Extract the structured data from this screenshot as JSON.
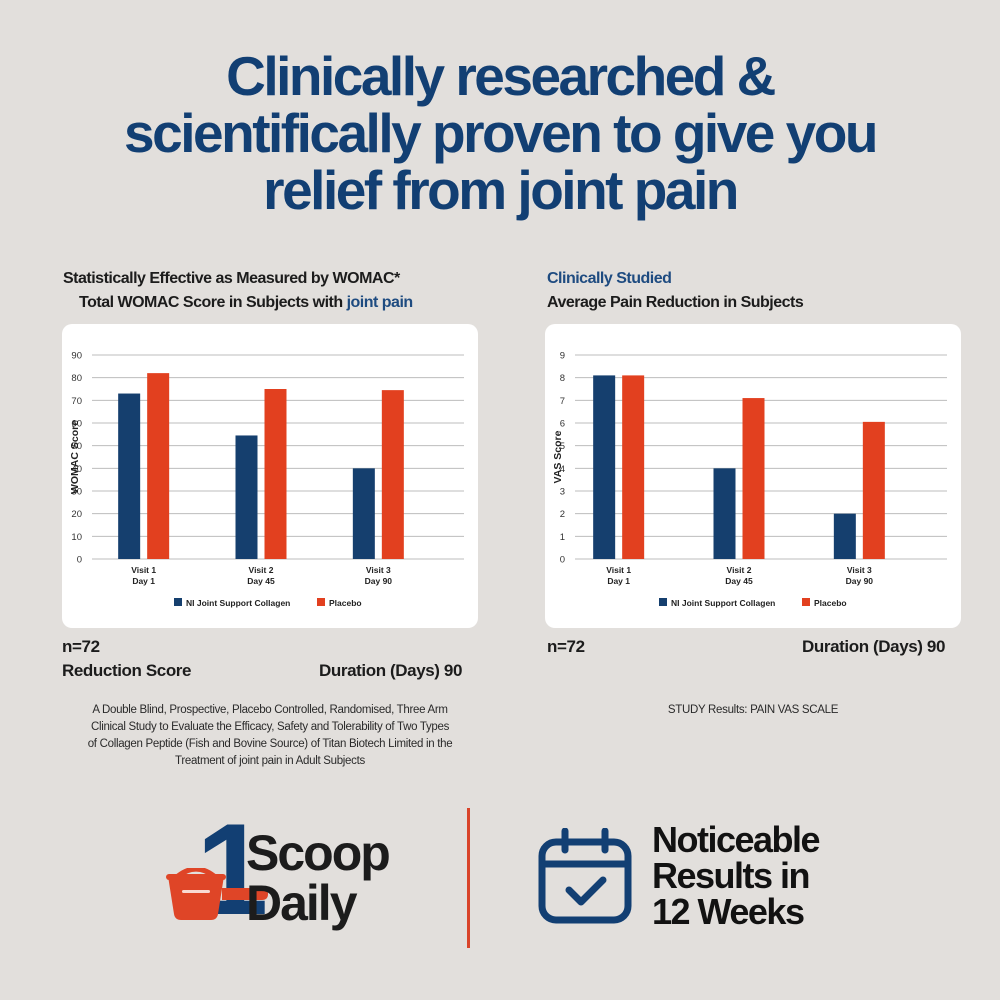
{
  "headline": {
    "line1": "Clinically researched &",
    "line2": "scientifically proven to give you",
    "line3": "relief from joint pain"
  },
  "left_panel": {
    "title_line1": "Statistically Effective as Measured by WOMAC*",
    "title_line2_prefix": "Total WOMAC Score in Subjects with ",
    "title_line2_highlight": "joint pain",
    "n_label": "n=72",
    "reduction_label": "Reduction Score",
    "duration_label": "Duration (Days) 90",
    "footnote": [
      "A Double Blind, Prospective, Placebo Controlled, Randomised, Three Arm",
      "Clinical Study to Evaluate the Efficacy, Safety and Tolerability of Two Types",
      "of Collagen Peptide (Fish and Bovine Source) of Titan Biotech Limited in the",
      "Treatment of joint pain in Adult Subjects"
    ]
  },
  "right_panel": {
    "title_line1": "Clinically Studied",
    "title_line2": "Average Pain Reduction in Subjects",
    "n_label": "n=72",
    "duration_label": "Duration (Days) 90",
    "footnote": "STUDY Results: PAIN VAS SCALE"
  },
  "colors": {
    "collagen": "#153f6e",
    "placebo": "#e2401f",
    "headline": "#123f73",
    "accent": "#d9442a"
  },
  "chart_data": [
    {
      "type": "bar",
      "categories": [
        [
          "Visit 1",
          "Day 1"
        ],
        [
          "Visit 2",
          "Day 45"
        ],
        [
          "Visit 3",
          "Day 90"
        ]
      ],
      "ylabel": "WOMAC Score",
      "ylim": [
        0,
        90
      ],
      "yticks": [
        0,
        10,
        20,
        30,
        40,
        50,
        60,
        70,
        80,
        90
      ],
      "grid": true,
      "legend_position": "bottom",
      "series": [
        {
          "name": "NI Joint Support Collagen",
          "color": "#153f6e",
          "values": [
            73,
            54.5,
            40
          ]
        },
        {
          "name": "Placebo",
          "color": "#e2401f",
          "values": [
            82,
            75,
            74.5
          ]
        }
      ]
    },
    {
      "type": "bar",
      "categories": [
        [
          "Visit 1",
          "Day 1"
        ],
        [
          "Visit 2",
          "Day 45"
        ],
        [
          "Visit 3",
          "Day 90"
        ]
      ],
      "ylabel": "VAS Score",
      "ylim": [
        0,
        9
      ],
      "yticks": [
        0,
        1,
        2,
        3,
        4,
        5,
        6,
        7,
        8,
        9
      ],
      "grid": true,
      "legend_position": "bottom",
      "series": [
        {
          "name": "NI Joint Support Collagen",
          "color": "#153f6e",
          "values": [
            8.1,
            4,
            2
          ]
        },
        {
          "name": "Placebo",
          "color": "#e2401f",
          "values": [
            8.1,
            7.1,
            6.05
          ]
        }
      ]
    }
  ],
  "badges": {
    "scoop": {
      "number": "1",
      "word1": "Scoop",
      "word2": "Daily"
    },
    "results": {
      "line1": "Noticeable",
      "line2": "Results in",
      "line3": "12 Weeks"
    },
    "scoop_icon": "scoop-icon",
    "calendar_icon": "calendar-check-icon"
  }
}
